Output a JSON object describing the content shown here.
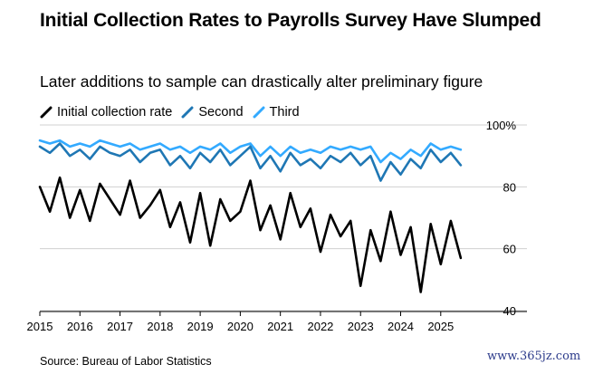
{
  "header": {
    "title": "Initial Collection Rates to Payrolls Survey Have Slumped",
    "subtitle": "Later additions to sample can drastically alter preliminary figure"
  },
  "footer": {
    "source": "Source: Bureau of Labor Statistics",
    "watermark": "www.365jz.com"
  },
  "colors": {
    "initial": "#000000",
    "second": "#1f77b4",
    "third": "#33aaff",
    "grid": "#d0d0d0",
    "axis": "#000000"
  },
  "chart_data": {
    "type": "line",
    "title": "",
    "xlabel": "",
    "ylabel": "",
    "ylim": [
      40,
      100
    ],
    "xlim": [
      2015,
      2025.75
    ],
    "y_ticks": [
      100,
      80,
      60,
      40
    ],
    "y_tick_labels": [
      "100%",
      "80",
      "60",
      "40"
    ],
    "x_ticks": [
      2015,
      2016,
      2017,
      2018,
      2019,
      2020,
      2021,
      2022,
      2023,
      2024,
      2025
    ],
    "x_tick_labels": [
      "2015",
      "2016",
      "2017",
      "2018",
      "2019",
      "2020",
      "2021",
      "2022",
      "2023",
      "2024",
      "2025"
    ],
    "grid": "horizontal",
    "legend_position": "top-left",
    "series": [
      {
        "name": "Initial collection rate",
        "key": "initial",
        "x": [
          2015.0,
          2015.25,
          2015.5,
          2015.75,
          2016.0,
          2016.25,
          2016.5,
          2016.75,
          2017.0,
          2017.25,
          2017.5,
          2017.75,
          2018.0,
          2018.25,
          2018.5,
          2018.75,
          2019.0,
          2019.25,
          2019.5,
          2019.75,
          2020.0,
          2020.25,
          2020.5,
          2020.75,
          2021.0,
          2021.25,
          2021.5,
          2021.75,
          2022.0,
          2022.25,
          2022.5,
          2022.75,
          2023.0,
          2023.25,
          2023.5,
          2023.75,
          2024.0,
          2024.25,
          2024.5,
          2024.75,
          2025.0,
          2025.25,
          2025.5
        ],
        "values": [
          80,
          72,
          83,
          70,
          79,
          69,
          81,
          76,
          71,
          82,
          70,
          74,
          79,
          67,
          75,
          62,
          78,
          61,
          76,
          69,
          72,
          82,
          66,
          74,
          63,
          78,
          67,
          73,
          59,
          71,
          64,
          69,
          48,
          66,
          56,
          72,
          58,
          67,
          46,
          68,
          55,
          69,
          57
        ]
      },
      {
        "name": "Second",
        "key": "second",
        "x": [
          2015.0,
          2015.25,
          2015.5,
          2015.75,
          2016.0,
          2016.25,
          2016.5,
          2016.75,
          2017.0,
          2017.25,
          2017.5,
          2017.75,
          2018.0,
          2018.25,
          2018.5,
          2018.75,
          2019.0,
          2019.25,
          2019.5,
          2019.75,
          2020.0,
          2020.25,
          2020.5,
          2020.75,
          2021.0,
          2021.25,
          2021.5,
          2021.75,
          2022.0,
          2022.25,
          2022.5,
          2022.75,
          2023.0,
          2023.25,
          2023.5,
          2023.75,
          2024.0,
          2024.25,
          2024.5,
          2024.75,
          2025.0,
          2025.25,
          2025.5
        ],
        "values": [
          93,
          91,
          94,
          90,
          92,
          89,
          93,
          91,
          90,
          92,
          88,
          91,
          92,
          87,
          90,
          86,
          91,
          88,
          92,
          87,
          90,
          93,
          86,
          90,
          85,
          91,
          87,
          89,
          86,
          90,
          88,
          91,
          87,
          90,
          82,
          88,
          84,
          89,
          86,
          92,
          88,
          91,
          87
        ]
      },
      {
        "name": "Third",
        "key": "third",
        "x": [
          2015.0,
          2015.25,
          2015.5,
          2015.75,
          2016.0,
          2016.25,
          2016.5,
          2016.75,
          2017.0,
          2017.25,
          2017.5,
          2017.75,
          2018.0,
          2018.25,
          2018.5,
          2018.75,
          2019.0,
          2019.25,
          2019.5,
          2019.75,
          2020.0,
          2020.25,
          2020.5,
          2020.75,
          2021.0,
          2021.25,
          2021.5,
          2021.75,
          2022.0,
          2022.25,
          2022.5,
          2022.75,
          2023.0,
          2023.25,
          2023.5,
          2023.75,
          2024.0,
          2024.25,
          2024.5,
          2024.75,
          2025.0,
          2025.25,
          2025.5
        ],
        "values": [
          95,
          94,
          95,
          93,
          94,
          93,
          95,
          94,
          93,
          94,
          92,
          93,
          94,
          92,
          93,
          91,
          93,
          92,
          94,
          91,
          93,
          94,
          90,
          93,
          90,
          93,
          91,
          92,
          91,
          93,
          92,
          93,
          92,
          93,
          88,
          91,
          89,
          92,
          90,
          94,
          92,
          93,
          92
        ]
      }
    ]
  }
}
